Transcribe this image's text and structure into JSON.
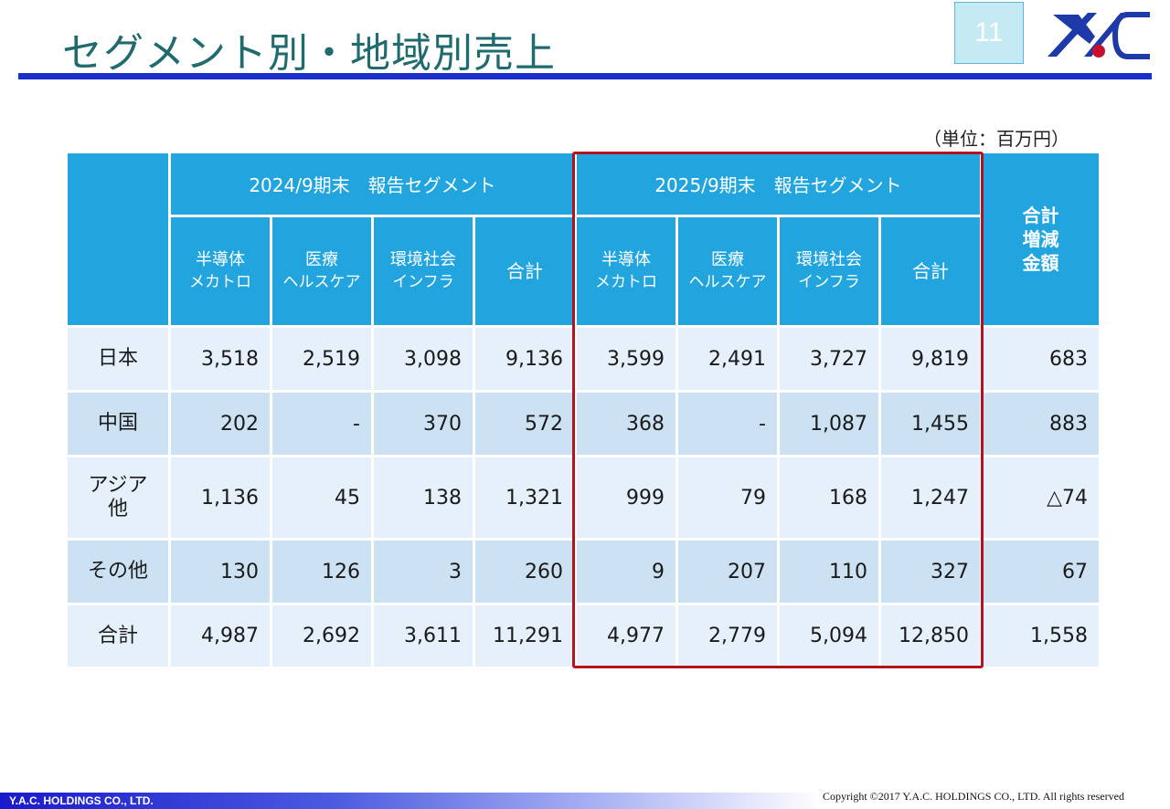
{
  "title": "セグメント別・地域別売上",
  "page_number": "11",
  "unit": "（単位：百万円）",
  "colors": {
    "header": "#22a5de",
    "title": "#1f6b6e",
    "rule": "#1a2fcc",
    "highlight": "#b3121f"
  },
  "table": {
    "group_2024": "2024/9期末　報告セグメント",
    "group_2025": "2025/9期末　報告セグメント",
    "total_change": [
      "合計",
      "増減",
      "金額"
    ],
    "subheaders": [
      [
        "半導体",
        "メカトロ"
      ],
      [
        "医療",
        "ヘルスケア"
      ],
      [
        "環境社会",
        "インフラ"
      ],
      [
        "合計",
        ""
      ]
    ],
    "rows": [
      {
        "label": [
          "日本",
          ""
        ],
        "values": [
          "3,518",
          "2,519",
          "3,098",
          "9,136",
          "3,599",
          "2,491",
          "3,727",
          "9,819",
          "683"
        ]
      },
      {
        "label": [
          "中国",
          ""
        ],
        "values": [
          "202",
          "-",
          "370",
          "572",
          "368",
          "-",
          "1,087",
          "1,455",
          "883"
        ]
      },
      {
        "label": [
          "アジア",
          "他"
        ],
        "values": [
          "1,136",
          "45",
          "138",
          "1,321",
          "999",
          "79",
          "168",
          "1,247",
          "△74"
        ]
      },
      {
        "label": [
          "その他",
          ""
        ],
        "values": [
          "130",
          "126",
          "3",
          "260",
          "9",
          "207",
          "110",
          "327",
          "67"
        ]
      },
      {
        "label": [
          "合計",
          ""
        ],
        "values": [
          "4,987",
          "2,692",
          "3,611",
          "11,291",
          "4,977",
          "2,779",
          "5,094",
          "12,850",
          "1,558"
        ]
      }
    ]
  },
  "footer": {
    "company": "Y.A.C. HOLDINGS CO., LTD.",
    "copyright": "Copyright ©2017 Y.A.C. HOLDINGS CO., LTD.  All rights reserved"
  }
}
